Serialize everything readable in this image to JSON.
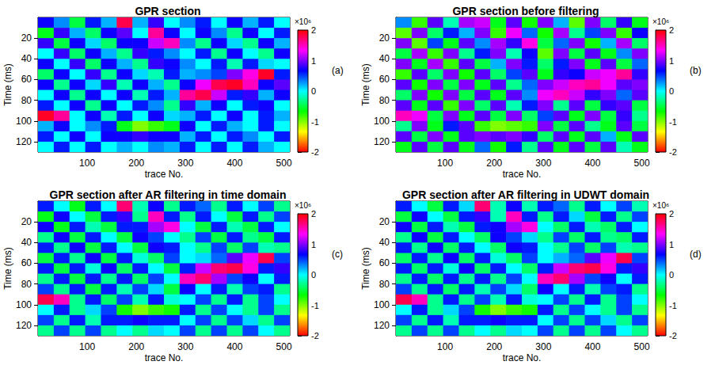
{
  "chart_data": [
    {
      "type": "heatmap",
      "title": "GPR section",
      "panel": "(a)",
      "x_label": "trace No.",
      "y_label": "Time (ms)",
      "xlim": [
        0,
        512
      ],
      "xticks": [
        100,
        200,
        300,
        400,
        500
      ],
      "ylim": [
        0,
        130
      ],
      "yticks": [
        20,
        40,
        60,
        80,
        100,
        120
      ],
      "x": [
        16,
        48,
        80,
        112,
        144,
        176,
        208,
        240,
        272,
        304,
        336,
        368,
        400,
        432,
        464,
        496
      ],
      "y": [
        5,
        15,
        25,
        35,
        45,
        55,
        65,
        75,
        85,
        95,
        105,
        115,
        125
      ],
      "cells": [
        [
          0.7,
          0.3,
          -0.5,
          0.6,
          0.2,
          1.8,
          0.2,
          0.8,
          0.0,
          0.3,
          0.6,
          0.0,
          0.7,
          0.2,
          0.6,
          0.0
        ],
        [
          -0.6,
          0.8,
          0.2,
          -0.4,
          0.7,
          0.9,
          0.0,
          1.6,
          0.7,
          0.0,
          0.7,
          0.3,
          -0.3,
          0.7,
          0.0,
          0.6
        ],
        [
          0.8,
          -0.5,
          0.7,
          0.1,
          -0.4,
          0.7,
          0.7,
          1.2,
          1.5,
          0.3,
          -0.3,
          0.7,
          0.1,
          -0.3,
          0.7,
          0.2
        ],
        [
          0.0,
          0.8,
          -0.4,
          0.7,
          0.2,
          -0.3,
          0.8,
          0.6,
          0.3,
          0.0,
          0.6,
          -0.3,
          0.7,
          0.0,
          -0.3,
          0.7
        ],
        [
          0.7,
          0.0,
          0.8,
          -0.4,
          0.7,
          0.2,
          -0.3,
          0.8,
          0.7,
          0.3,
          0.0,
          0.6,
          -0.2,
          0.6,
          0.1,
          0.0
        ],
        [
          -0.4,
          0.7,
          0.0,
          0.8,
          -0.3,
          0.7,
          0.1,
          -0.2,
          0.6,
          0.2,
          0.3,
          0.5,
          1.0,
          1.4,
          1.9,
          0.6
        ],
        [
          0.7,
          -0.3,
          0.7,
          0.1,
          0.8,
          -0.2,
          0.7,
          0.2,
          -0.3,
          0.7,
          1.3,
          1.8,
          1.9,
          1.5,
          0.7,
          0.9
        ],
        [
          0.0,
          0.7,
          -0.3,
          0.7,
          0.0,
          0.7,
          -0.2,
          0.6,
          0.2,
          1.6,
          1.8,
          1.2,
          0.6,
          0.8,
          0.2,
          0.7
        ],
        [
          0.6,
          0.0,
          0.7,
          -0.3,
          0.7,
          0.0,
          0.6,
          0.3,
          -0.3,
          0.8,
          0.2,
          0.7,
          0.0,
          0.6,
          0.7,
          0.0
        ],
        [
          1.9,
          1.6,
          0.0,
          0.7,
          -0.2,
          0.6,
          0.0,
          0.7,
          0.1,
          0.2,
          0.6,
          0.0,
          0.7,
          0.0,
          0.6,
          0.2
        ],
        [
          0.2,
          0.7,
          0.0,
          0.3,
          0.6,
          -0.6,
          -1.0,
          -0.8,
          -0.6,
          0.7,
          0.0,
          0.6,
          0.2,
          0.0,
          0.6,
          0.0
        ],
        [
          0.6,
          0.0,
          0.7,
          0.0,
          0.7,
          0.7,
          0.8,
          0.7,
          0.7,
          0.2,
          0.6,
          0.0,
          0.6,
          0.3,
          0.0,
          0.6
        ],
        [
          0.0,
          0.6,
          0.0,
          0.6,
          0.0,
          0.2,
          0.0,
          0.3,
          0.2,
          0.6,
          0.0,
          0.6,
          0.0,
          0.6,
          0.2,
          0.0
        ]
      ],
      "colorbar": {
        "range": [
          -2,
          2
        ],
        "ticks": [
          -2,
          -1,
          0,
          1,
          2
        ],
        "label": "×10⁶",
        "colors": [
          "#ff0000",
          "#ffff00",
          "#00ff00",
          "#00ffff",
          "#0000ff",
          "#ff00ff",
          "#ff0000"
        ]
      }
    },
    {
      "type": "heatmap",
      "title": "GPR section before filtering",
      "panel": "(b)",
      "x_label": "trace No.",
      "y_label": "Time (ms)",
      "xlim": [
        0,
        512
      ],
      "xticks": [
        100,
        200,
        300,
        400,
        500
      ],
      "ylim": [
        0,
        130
      ],
      "yticks": [
        20,
        40,
        60,
        80,
        100,
        120
      ],
      "x": [
        16,
        48,
        80,
        112,
        144,
        176,
        208,
        240,
        272,
        304,
        336,
        368,
        400,
        432,
        464,
        496
      ],
      "y": [
        5,
        15,
        25,
        35,
        45,
        55,
        65,
        75,
        85,
        95,
        105,
        115,
        125
      ],
      "cells": [
        [
          0.3,
          -0.8,
          0.9,
          -0.2,
          1.1,
          1.2,
          -0.6,
          0.9,
          -0.7,
          1.0,
          0.2,
          -0.9,
          1.0,
          -0.4,
          0.8,
          -0.6
        ],
        [
          -0.9,
          1.0,
          -0.4,
          0.6,
          0.2,
          1.0,
          -0.8,
          1.3,
          0.4,
          -0.7,
          1.1,
          -0.3,
          0.5,
          1.0,
          -0.8,
          0.7
        ],
        [
          1.0,
          -0.9,
          0.5,
          -0.6,
          0.9,
          0.3,
          1.1,
          0.8,
          1.4,
          -0.5,
          0.4,
          1.0,
          -0.7,
          0.2,
          1.1,
          -0.4
        ],
        [
          -0.5,
          1.1,
          -0.8,
          1.0,
          -0.3,
          0.6,
          1.0,
          -0.2,
          0.7,
          -0.9,
          1.0,
          -0.5,
          0.9,
          -0.6,
          0.3,
          1.0
        ],
        [
          1.0,
          -0.6,
          1.1,
          -0.8,
          0.9,
          -0.5,
          0.2,
          1.0,
          0.6,
          -0.4,
          0.6,
          1.0,
          -0.6,
          0.9,
          -0.5,
          0.4
        ],
        [
          -0.8,
          0.9,
          -0.4,
          1.0,
          -0.7,
          0.9,
          -0.4,
          0.5,
          0.9,
          -0.6,
          0.8,
          0.7,
          1.2,
          1.3,
          1.6,
          0.8
        ],
        [
          0.9,
          -0.7,
          1.0,
          -0.5,
          1.0,
          -0.6,
          0.9,
          -0.3,
          0.4,
          1.0,
          1.2,
          1.5,
          1.6,
          1.3,
          0.9,
          1.0
        ],
        [
          -0.4,
          1.0,
          -0.7,
          1.0,
          -0.5,
          0.9,
          -0.6,
          0.9,
          0.3,
          1.3,
          1.5,
          1.2,
          0.8,
          1.0,
          0.4,
          0.9
        ],
        [
          0.9,
          -0.6,
          0.9,
          -0.8,
          1.0,
          -0.4,
          0.9,
          -0.2,
          0.6,
          1.0,
          -0.3,
          0.9,
          -0.5,
          0.8,
          0.9,
          -0.5
        ],
        [
          1.5,
          1.3,
          -0.5,
          1.0,
          -0.6,
          0.9,
          -0.5,
          1.0,
          -0.4,
          0.5,
          0.9,
          -0.6,
          1.0,
          -0.5,
          0.8,
          -0.3
        ],
        [
          -0.3,
          1.0,
          -0.6,
          0.6,
          0.9,
          -0.8,
          -1.0,
          -0.9,
          -0.8,
          1.0,
          -0.5,
          0.9,
          -0.3,
          -0.6,
          0.9,
          -0.5
        ],
        [
          0.9,
          -0.5,
          1.0,
          -0.6,
          0.9,
          1.0,
          0.9,
          1.0,
          0.8,
          -0.4,
          0.9,
          -0.6,
          0.9,
          0.2,
          -0.6,
          0.9
        ],
        [
          -0.6,
          0.9,
          -0.5,
          0.9,
          -0.6,
          0.4,
          -0.7,
          0.6,
          -0.3,
          0.9,
          -0.6,
          0.9,
          -0.5,
          0.9,
          -0.2,
          -0.6
        ]
      ],
      "colorbar": {
        "range": [
          -2,
          2
        ],
        "ticks": [
          -2,
          -1,
          0,
          1,
          2
        ],
        "label": "×10⁶",
        "colors": [
          "#ff0000",
          "#ffff00",
          "#00ff00",
          "#00ffff",
          "#0000ff",
          "#ff00ff",
          "#ff0000"
        ]
      }
    },
    {
      "type": "heatmap",
      "title": "GPR section after AR filtering in time domain",
      "panel": "(c)",
      "x_label": "trace No.",
      "y_label": "Time (ms)",
      "xlim": [
        0,
        512
      ],
      "xticks": [
        100,
        200,
        300,
        400,
        500
      ],
      "ylim": [
        0,
        130
      ],
      "yticks": [
        20,
        40,
        60,
        80,
        100,
        120
      ],
      "x": [
        16,
        48,
        80,
        112,
        144,
        176,
        208,
        240,
        272,
        304,
        336,
        368,
        400,
        432,
        464,
        496
      ],
      "y": [
        5,
        15,
        25,
        35,
        45,
        55,
        65,
        75,
        85,
        95,
        105,
        115,
        125
      ],
      "cells": [
        [
          0.6,
          0.0,
          -0.6,
          0.6,
          0.0,
          1.7,
          -0.2,
          0.7,
          -0.3,
          0.6,
          0.4,
          -0.3,
          0.6,
          0.0,
          0.5,
          -0.3
        ],
        [
          -0.6,
          0.7,
          0.0,
          -0.5,
          0.6,
          0.8,
          -0.3,
          1.5,
          0.6,
          -0.3,
          0.6,
          0.0,
          -0.5,
          0.6,
          -0.3,
          0.5
        ],
        [
          0.7,
          -0.6,
          0.6,
          -0.2,
          -0.5,
          0.6,
          0.6,
          1.1,
          1.4,
          0.0,
          -0.5,
          0.6,
          -0.2,
          -0.5,
          0.6,
          0.0
        ],
        [
          -0.3,
          0.7,
          -0.5,
          0.6,
          0.0,
          -0.5,
          0.7,
          0.5,
          0.0,
          -0.3,
          0.5,
          -0.5,
          0.6,
          -0.3,
          -0.5,
          0.6
        ],
        [
          0.6,
          -0.3,
          0.7,
          -0.5,
          0.6,
          0.0,
          -0.5,
          0.7,
          0.6,
          0.0,
          -0.3,
          0.5,
          -0.4,
          0.5,
          -0.2,
          -0.3
        ],
        [
          -0.5,
          0.6,
          -0.3,
          0.7,
          -0.5,
          0.6,
          -0.1,
          -0.4,
          0.5,
          0.0,
          0.1,
          0.4,
          0.9,
          1.3,
          1.8,
          0.5
        ],
        [
          0.6,
          -0.5,
          0.6,
          -0.1,
          0.7,
          -0.4,
          0.6,
          0.0,
          -0.5,
          0.6,
          1.2,
          1.7,
          1.8,
          1.4,
          0.6,
          0.8
        ],
        [
          -0.3,
          0.6,
          -0.5,
          0.6,
          -0.3,
          0.6,
          -0.4,
          0.5,
          0.0,
          1.5,
          1.7,
          1.1,
          0.5,
          0.7,
          0.0,
          0.6
        ],
        [
          0.5,
          -0.3,
          0.6,
          -0.5,
          0.6,
          -0.2,
          0.5,
          0.1,
          -0.5,
          0.7,
          0.0,
          0.6,
          -0.2,
          0.5,
          0.6,
          -0.3
        ],
        [
          1.8,
          1.5,
          -0.3,
          0.6,
          -0.4,
          0.5,
          -0.2,
          0.6,
          -0.1,
          0.0,
          0.5,
          -0.3,
          0.6,
          -0.3,
          0.5,
          0.0
        ],
        [
          0.0,
          0.6,
          -0.3,
          0.1,
          0.5,
          -0.7,
          -1.0,
          -0.8,
          -0.7,
          0.6,
          -0.3,
          0.5,
          0.0,
          -0.3,
          0.5,
          -0.3
        ],
        [
          0.5,
          -0.3,
          0.6,
          -0.2,
          0.6,
          0.6,
          0.7,
          0.6,
          0.6,
          0.0,
          0.5,
          -0.3,
          0.5,
          0.1,
          -0.3,
          0.5
        ],
        [
          -0.3,
          0.5,
          -0.3,
          0.5,
          -0.3,
          0.0,
          -0.3,
          0.1,
          0.0,
          0.5,
          -0.3,
          0.5,
          -0.3,
          0.5,
          0.0,
          -0.3
        ]
      ],
      "colorbar": {
        "range": [
          -2,
          2
        ],
        "ticks": [
          -2,
          -1,
          0,
          1,
          2
        ],
        "label": "×10⁶",
        "colors": [
          "#ff0000",
          "#ffff00",
          "#00ff00",
          "#00ffff",
          "#0000ff",
          "#ff00ff",
          "#ff0000"
        ]
      }
    },
    {
      "type": "heatmap",
      "title": "GPR section after AR filtering in UDWT domain",
      "panel": "(d)",
      "x_label": "trace No.",
      "y_label": "Time (ms)",
      "xlim": [
        0,
        512
      ],
      "xticks": [
        100,
        200,
        300,
        400,
        500
      ],
      "ylim": [
        0,
        130
      ],
      "yticks": [
        20,
        40,
        60,
        80,
        100,
        120
      ],
      "x": [
        16,
        48,
        80,
        112,
        144,
        176,
        208,
        240,
        272,
        304,
        336,
        368,
        400,
        432,
        464,
        496
      ],
      "y": [
        5,
        15,
        25,
        35,
        45,
        55,
        65,
        75,
        85,
        95,
        105,
        115,
        125
      ],
      "cells": [
        [
          0.6,
          0.0,
          -0.5,
          0.6,
          0.1,
          1.7,
          -0.2,
          0.7,
          -0.2,
          0.6,
          0.4,
          -0.3,
          0.6,
          0.0,
          0.5,
          -0.2
        ],
        [
          -0.5,
          0.7,
          0.0,
          -0.5,
          0.6,
          0.8,
          -0.2,
          1.5,
          0.6,
          -0.3,
          0.6,
          0.1,
          -0.5,
          0.6,
          -0.3,
          0.5
        ],
        [
          0.7,
          -0.5,
          0.6,
          -0.2,
          -0.5,
          0.6,
          0.7,
          1.1,
          1.4,
          0.0,
          -0.4,
          0.6,
          -0.2,
          -0.4,
          0.6,
          0.0
        ],
        [
          -0.3,
          0.7,
          -0.5,
          0.6,
          0.0,
          -0.4,
          0.7,
          0.5,
          0.1,
          -0.3,
          0.5,
          -0.4,
          0.6,
          -0.3,
          -0.4,
          0.6
        ],
        [
          0.6,
          -0.3,
          0.7,
          -0.4,
          0.6,
          0.0,
          -0.4,
          0.7,
          0.6,
          0.0,
          -0.3,
          0.5,
          -0.4,
          0.5,
          -0.2,
          -0.3
        ],
        [
          -0.4,
          0.6,
          -0.3,
          0.7,
          -0.4,
          0.6,
          -0.1,
          -0.4,
          0.5,
          0.0,
          0.2,
          0.4,
          0.9,
          1.3,
          1.8,
          0.5
        ],
        [
          0.6,
          -0.4,
          0.6,
          -0.1,
          0.7,
          -0.4,
          0.6,
          0.0,
          -0.4,
          0.6,
          1.2,
          1.7,
          1.8,
          1.4,
          0.6,
          0.8
        ],
        [
          -0.3,
          0.6,
          -0.4,
          0.6,
          -0.3,
          0.6,
          -0.3,
          0.5,
          0.0,
          1.5,
          1.7,
          1.1,
          0.5,
          0.7,
          0.0,
          0.6
        ],
        [
          0.5,
          -0.3,
          0.6,
          -0.4,
          0.6,
          -0.2,
          0.5,
          0.1,
          -0.4,
          0.7,
          0.0,
          0.6,
          -0.2,
          0.5,
          0.6,
          -0.3
        ],
        [
          1.8,
          1.5,
          -0.3,
          0.6,
          -0.3,
          0.5,
          -0.2,
          0.6,
          -0.1,
          0.0,
          0.5,
          -0.3,
          0.6,
          -0.3,
          0.5,
          0.0
        ],
        [
          0.0,
          0.6,
          -0.3,
          0.1,
          0.5,
          -0.7,
          -1.0,
          -0.8,
          -0.7,
          0.6,
          -0.3,
          0.5,
          0.0,
          -0.3,
          0.5,
          -0.3
        ],
        [
          0.5,
          -0.3,
          0.6,
          -0.2,
          0.6,
          0.6,
          0.7,
          0.6,
          0.6,
          0.0,
          0.5,
          -0.3,
          0.5,
          0.1,
          -0.3,
          0.5
        ],
        [
          -0.3,
          0.5,
          -0.3,
          0.5,
          -0.3,
          0.0,
          -0.3,
          0.1,
          0.0,
          0.5,
          -0.3,
          0.5,
          -0.3,
          0.5,
          0.0,
          -0.3
        ]
      ],
      "colorbar": {
        "range": [
          -2,
          2
        ],
        "ticks": [
          -2,
          -1,
          0,
          1,
          2
        ],
        "label": "×10⁶",
        "colors": [
          "#ff0000",
          "#ffff00",
          "#00ff00",
          "#00ffff",
          "#0000ff",
          "#ff00ff",
          "#ff0000"
        ]
      }
    }
  ]
}
